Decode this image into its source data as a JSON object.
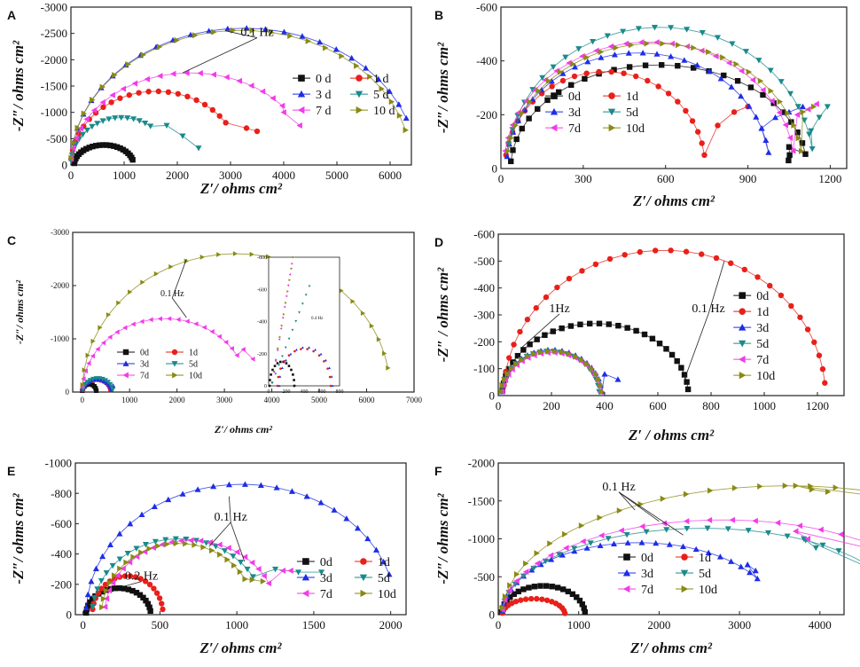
{
  "figure": {
    "description_color_map": {
      "0d": "#111111",
      "1d": "#e8201a",
      "3d": "#1e2de6",
      "5d": "#1a8a8a",
      "7d": "#f23ce8",
      "10d": "#8a8a14"
    }
  },
  "chart_data": [
    {
      "panel": "A",
      "type": "scatter",
      "xlabel": "Z′/ ohms cm²",
      "ylabel": "-Z″/ ohms cm²",
      "xlim": [
        0,
        6400
      ],
      "ylim": [
        0,
        3000
      ],
      "xticks": [
        "0",
        "1000",
        "2000",
        "3000",
        "4000",
        "5000",
        "6000"
      ],
      "yticks": [
        "0",
        "-500",
        "-1000",
        "-1500",
        "-2000",
        "-2500",
        "-3000"
      ],
      "legend": {
        "position": "middle-right",
        "columns": 2
      },
      "annotations": [
        {
          "text": "0.1 Hz",
          "at": [
            3500,
            2450
          ],
          "targets": [
            [
              2900,
              2550
            ],
            [
              2100,
              1750
            ]
          ]
        }
      ],
      "series": [
        {
          "name": "0 d",
          "marker": "square",
          "color": "#111111",
          "center": 620,
          "radius": 560,
          "peak": 380,
          "start_deg": 5,
          "end_deg": 165,
          "n": 24,
          "tail": []
        },
        {
          "name": "1 d",
          "marker": "circle",
          "color": "#e8201a",
          "center": 1600,
          "radius": 1600,
          "peak": 1400,
          "start_deg": 5,
          "end_deg": 145,
          "n": 22,
          "tail": [
            [
              3300,
              700
            ],
            [
              3500,
              640
            ]
          ]
        },
        {
          "name": "3 d",
          "marker": "triangle-up",
          "color": "#1e2de6",
          "center": 3250,
          "radius": 3250,
          "peak": 2600,
          "start_deg": 3,
          "end_deg": 160,
          "n": 26,
          "tail": []
        },
        {
          "name": "5 d",
          "marker": "triangle-down",
          "color": "#1a8a8a",
          "center": 950,
          "radius": 950,
          "peak": 900,
          "start_deg": 5,
          "end_deg": 125,
          "n": 18,
          "tail": [
            [
              1800,
              750
            ],
            [
              2100,
              550
            ],
            [
              2400,
              320
            ]
          ]
        },
        {
          "name": "7 d",
          "marker": "triangle-left",
          "color": "#f23ce8",
          "center": 2250,
          "radius": 2250,
          "peak": 1750,
          "start_deg": 4,
          "end_deg": 140,
          "n": 22,
          "tail": [
            [
              4000,
              1000
            ],
            [
              4300,
              750
            ]
          ]
        },
        {
          "name": "10 d",
          "marker": "triangle-right",
          "color": "#8a8a14",
          "center": 3200,
          "radius": 3200,
          "peak": 2560,
          "start_deg": 3,
          "end_deg": 165,
          "n": 26,
          "tail": []
        }
      ]
    },
    {
      "panel": "B",
      "type": "scatter",
      "xlabel": "Z′/ ohms cm²",
      "ylabel": "-Z″/ ohms cm²",
      "xlim": [
        0,
        1260
      ],
      "ylim": [
        0,
        600
      ],
      "xticks": [
        "0",
        "300",
        "600",
        "900",
        "1200"
      ],
      "yticks": [
        "0",
        "-200",
        "-400",
        "-600"
      ],
      "legend": {
        "position": "middle-left",
        "columns": 2
      },
      "annotations": [],
      "series": [
        {
          "name": "0d",
          "marker": "square",
          "color": "#111111",
          "center": 575,
          "radius": 540,
          "peak": 385,
          "start_deg": 4,
          "end_deg": 172,
          "n": 28,
          "tail": [
            [
              1050,
              80
            ],
            [
              1052,
              50
            ],
            [
              1048,
              30
            ]
          ]
        },
        {
          "name": "1d",
          "marker": "circle",
          "color": "#e8201a",
          "center": 380,
          "radius": 365,
          "peak": 360,
          "start_deg": 8,
          "end_deg": 172,
          "n": 24,
          "tail": [
            [
              790,
              160
            ],
            [
              850,
              210
            ],
            [
              900,
              230
            ]
          ]
        },
        {
          "name": "3d",
          "marker": "triangle-up",
          "color": "#1e2de6",
          "center": 500,
          "radius": 480,
          "peak": 430,
          "start_deg": 6,
          "end_deg": 172,
          "n": 28,
          "tail": [
            [
              950,
              150
            ],
            [
              1000,
              190
            ],
            [
              1050,
              210
            ],
            [
              1100,
              230
            ]
          ]
        },
        {
          "name": "5d",
          "marker": "triangle-down",
          "color": "#1a8a8a",
          "center": 580,
          "radius": 560,
          "peak": 525,
          "start_deg": 10,
          "end_deg": 172,
          "n": 28,
          "tail": [
            [
              1130,
              140
            ],
            [
              1160,
              190
            ],
            [
              1190,
              230
            ]
          ]
        },
        {
          "name": "7d",
          "marker": "triangle-left",
          "color": "#f23ce8",
          "center": 540,
          "radius": 530,
          "peak": 470,
          "start_deg": 8,
          "end_deg": 172,
          "n": 28,
          "tail": [
            [
              1080,
              200
            ],
            [
              1120,
              220
            ],
            [
              1150,
              240
            ]
          ]
        },
        {
          "name": "10d",
          "marker": "triangle-right",
          "color": "#8a8a14",
          "center": 560,
          "radius": 540,
          "peak": 465,
          "start_deg": 8,
          "end_deg": 172,
          "n": 28,
          "tail": [
            [
              1100,
              210
            ],
            [
              1140,
              230
            ]
          ]
        }
      ]
    },
    {
      "panel": "C",
      "type": "scatter",
      "xlabel": "Z′/ ohms cm²",
      "ylabel": "-Z″/ ohms cm²",
      "xlim": [
        -200,
        7000
      ],
      "ylim": [
        0,
        3000
      ],
      "xticks": [
        "0",
        "1000",
        "2000",
        "3000",
        "4000",
        "5000",
        "6000",
        "7000"
      ],
      "yticks": [
        "0",
        "-1000",
        "-2000",
        "-3000"
      ],
      "legend": {
        "position": "bottom-left",
        "columns": 2
      },
      "annotations": [
        {
          "text": "0.1 Hz",
          "at": [
            1900,
            1800
          ],
          "targets": [
            [
              2200,
              2500
            ],
            [
              2200,
              1400
            ]
          ]
        }
      ],
      "inset": {
        "xticks": [
          "0",
          "200",
          "400",
          "600",
          "800"
        ],
        "yticks": [
          "0",
          "-200",
          "-400",
          "-600",
          "-800"
        ],
        "annotation": "0.4 Hz"
      },
      "series": [
        {
          "name": "0d",
          "marker": "square",
          "color": "#111111",
          "center": 150,
          "radius": 150,
          "peak": 150,
          "start_deg": 10,
          "end_deg": 170,
          "n": 10,
          "tail": []
        },
        {
          "name": "1d",
          "marker": "circle",
          "color": "#e8201a",
          "center": 300,
          "radius": 300,
          "peak": 230,
          "start_deg": 10,
          "end_deg": 170,
          "n": 14,
          "tail": []
        },
        {
          "name": "3d",
          "marker": "triangle-up",
          "color": "#1e2de6",
          "center": 310,
          "radius": 310,
          "peak": 240,
          "start_deg": 10,
          "end_deg": 170,
          "n": 14,
          "tail": [
            [
              650,
              120
            ]
          ]
        },
        {
          "name": "5d",
          "marker": "triangle-down",
          "color": "#1a8a8a",
          "center": 330,
          "radius": 320,
          "peak": 260,
          "start_deg": 10,
          "end_deg": 170,
          "n": 14,
          "tail": []
        },
        {
          "name": "7d",
          "marker": "triangle-left",
          "color": "#f23ce8",
          "center": 1750,
          "radius": 1750,
          "peak": 1380,
          "start_deg": 4,
          "end_deg": 150,
          "n": 24,
          "tail": [
            [
              3400,
              800
            ],
            [
              3600,
              620
            ]
          ]
        },
        {
          "name": "10d",
          "marker": "triangle-right",
          "color": "#8a8a14",
          "center": 3250,
          "radius": 3250,
          "peak": 2600,
          "start_deg": 3,
          "end_deg": 170,
          "n": 28,
          "tail": []
        }
      ]
    },
    {
      "panel": "D",
      "type": "scatter",
      "xlabel": "Z′ / ohms cm²",
      "ylabel": "-Z″ / ohms cm²",
      "xlim": [
        0,
        1300
      ],
      "ylim": [
        0,
        600
      ],
      "xticks": [
        "0",
        "200",
        "400",
        "600",
        "800",
        "1000",
        "1200"
      ],
      "yticks": [
        "0",
        "-100",
        "-200",
        "-300",
        "-400",
        "-500",
        "-600"
      ],
      "legend": {
        "position": "middle-right",
        "columns": 1
      },
      "annotations": [
        {
          "text": "1Hz",
          "at": [
            230,
            310
          ],
          "targets": [
            [
              90,
              180
            ]
          ]
        },
        {
          "text": "0.1 Hz",
          "at": [
            790,
            310
          ],
          "targets": [
            [
              700,
              60
            ],
            [
              850,
              500
            ]
          ]
        }
      ],
      "series": [
        {
          "name": "0d",
          "marker": "square",
          "color": "#111111",
          "center": 365,
          "radius": 350,
          "peak": 268,
          "start_deg": 4,
          "end_deg": 175,
          "n": 30,
          "tail": []
        },
        {
          "name": "1d",
          "marker": "circle",
          "color": "#e8201a",
          "center": 625,
          "radius": 605,
          "peak": 540,
          "start_deg": 4,
          "end_deg": 175,
          "n": 32,
          "tail": []
        },
        {
          "name": "3d",
          "marker": "triangle-up",
          "color": "#1e2de6",
          "center": 200,
          "radius": 190,
          "peak": 170,
          "start_deg": 5,
          "end_deg": 175,
          "n": 22,
          "tail": [
            [
              400,
              80
            ],
            [
              450,
              60
            ]
          ]
        },
        {
          "name": "5d",
          "marker": "triangle-down",
          "color": "#1a8a8a",
          "center": 195,
          "radius": 185,
          "peak": 165,
          "start_deg": 5,
          "end_deg": 175,
          "n": 22,
          "tail": []
        },
        {
          "name": "7d",
          "marker": "triangle-left",
          "color": "#f23ce8",
          "center": 200,
          "radius": 185,
          "peak": 160,
          "start_deg": 5,
          "end_deg": 175,
          "n": 22,
          "tail": []
        },
        {
          "name": "10d",
          "marker": "triangle-right",
          "color": "#8a8a14",
          "center": 200,
          "radius": 190,
          "peak": 165,
          "start_deg": 5,
          "end_deg": 175,
          "n": 22,
          "tail": []
        }
      ]
    },
    {
      "panel": "E",
      "type": "scatter",
      "xlabel": "Z′/ ohms cm²",
      "ylabel": "-Z″/ ohms cm²",
      "xlim": [
        -50,
        2100
      ],
      "ylim": [
        0,
        1000
      ],
      "xticks": [
        "0",
        "500",
        "1000",
        "1500",
        "2000"
      ],
      "yticks": [
        "0",
        "-200",
        "-400",
        "-600",
        "-800",
        "-1000"
      ],
      "legend": {
        "position": "bottom-right",
        "columns": 2
      },
      "annotations": [
        {
          "text": "0.1 Hz",
          "at": [
            960,
            620
          ],
          "targets": [
            [
              950,
              780
            ],
            [
              820,
              450
            ],
            [
              1050,
              350
            ]
          ]
        },
        {
          "text": "0.2 Hz",
          "at": [
            380,
            230
          ],
          "targets": [
            [
              260,
              185
            ]
          ]
        }
      ],
      "series": [
        {
          "name": "0d",
          "marker": "square",
          "color": "#111111",
          "center": 230,
          "radius": 210,
          "peak": 175,
          "start_deg": 4,
          "end_deg": 172,
          "n": 22,
          "tail": []
        },
        {
          "name": "1d",
          "marker": "circle",
          "color": "#e8201a",
          "center": 290,
          "radius": 230,
          "peak": 255,
          "start_deg": 8,
          "end_deg": 172,
          "n": 20,
          "tail": []
        },
        {
          "name": "3d",
          "marker": "triangle-up",
          "color": "#1e2de6",
          "center": 1030,
          "radius": 1010,
          "peak": 860,
          "start_deg": 3,
          "end_deg": 162,
          "n": 28,
          "tail": []
        },
        {
          "name": "5d",
          "marker": "triangle-down",
          "color": "#1a8a8a",
          "center": 620,
          "radius": 560,
          "peak": 500,
          "start_deg": 6,
          "end_deg": 150,
          "n": 22,
          "tail": [
            [
              1250,
              300
            ],
            [
              1400,
              280
            ],
            [
              1550,
              280
            ]
          ]
        },
        {
          "name": "7d",
          "marker": "triangle-left",
          "color": "#f23ce8",
          "center": 700,
          "radius": 560,
          "peak": 490,
          "start_deg": 6,
          "end_deg": 155,
          "n": 24,
          "tail": [
            [
              1300,
              290
            ],
            [
              1350,
              290
            ]
          ]
        },
        {
          "name": "10d",
          "marker": "triangle-right",
          "color": "#8a8a14",
          "center": 620,
          "radius": 500,
          "peak": 470,
          "start_deg": 6,
          "end_deg": 150,
          "n": 22,
          "tail": [
            [
              1100,
              230
            ],
            [
              1170,
              220
            ]
          ]
        }
      ]
    },
    {
      "panel": "F",
      "type": "scatter",
      "xlabel": "Z′/ ohms cm²",
      "ylabel": "-Z″/ ohms cm²",
      "xlim": [
        0,
        4300
      ],
      "ylim": [
        0,
        2000
      ],
      "xticks": [
        "0",
        "1000",
        "2000",
        "3000",
        "4000"
      ],
      "yticks": [
        "0",
        "-500",
        "-1000",
        "-1500",
        "-2000"
      ],
      "legend": {
        "position": "bottom-left",
        "columns": 2
      },
      "annotations": [
        {
          "text": "0.1 Hz",
          "at": [
            1500,
            1640
          ],
          "targets": [
            [
              1700,
              1380
            ],
            [
              2000,
              1230
            ],
            [
              2300,
              1050
            ]
          ]
        }
      ],
      "series": [
        {
          "name": "0d",
          "marker": "square",
          "color": "#111111",
          "center": 560,
          "radius": 520,
          "peak": 380,
          "start_deg": 5,
          "end_deg": 175,
          "n": 22,
          "tail": []
        },
        {
          "name": "1d",
          "marker": "circle",
          "color": "#e8201a",
          "center": 440,
          "radius": 390,
          "peak": 210,
          "start_deg": 6,
          "end_deg": 175,
          "n": 18,
          "tail": []
        },
        {
          "name": "3d",
          "marker": "triangle-up",
          "color": "#1e2de6",
          "center": 1750,
          "radius": 1700,
          "peak": 950,
          "start_deg": 3,
          "end_deg": 150,
          "n": 26,
          "tail": [
            [
              3100,
              660
            ],
            [
              3200,
              580
            ]
          ]
        },
        {
          "name": "5d",
          "marker": "triangle-down",
          "color": "#1a8a8a",
          "center": 2550,
          "radius": 2500,
          "peak": 1140,
          "start_deg": 3,
          "end_deg": 150,
          "n": 26,
          "tail": [
            [
              3800,
              1000
            ],
            [
              3950,
              880
            ]
          ]
        },
        {
          "name": "7d",
          "marker": "triangle-left",
          "color": "#f23ce8",
          "center": 2800,
          "radius": 2750,
          "peak": 1250,
          "start_deg": 3,
          "end_deg": 140,
          "n": 24,
          "tail": [
            [
              3700,
              1100
            ],
            [
              3850,
              1000
            ]
          ]
        },
        {
          "name": "10d",
          "marker": "triangle-right",
          "color": "#8a8a14",
          "center": 3600,
          "radius": 3550,
          "peak": 1700,
          "start_deg": 3,
          "end_deg": 120,
          "n": 24,
          "tail": [
            [
              3700,
              1700
            ],
            [
              3900,
              1650
            ],
            [
              4100,
              1620
            ]
          ]
        }
      ]
    }
  ]
}
